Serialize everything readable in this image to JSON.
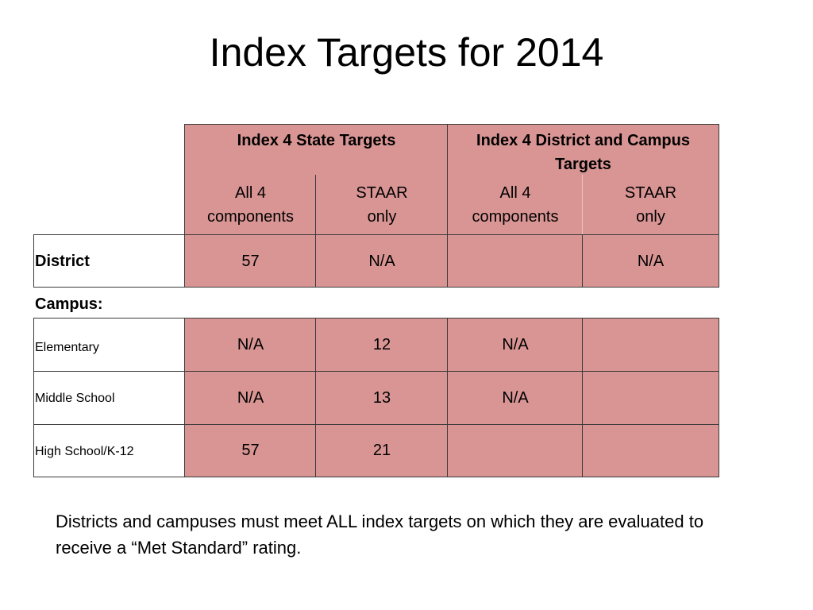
{
  "slide": {
    "title": "Index Targets for 2014",
    "footnote": "Districts and campuses  must meet ALL index targets on which they are evaluated to receive a “Met Standard” rating."
  },
  "table": {
    "group_headers": {
      "state": "Index 4 State Targets",
      "district_campus": "Index 4 District and Campus Targets"
    },
    "sub_headers": {
      "state_all": "All 4 components",
      "state_staar": "STAAR only",
      "dc_all": "All 4 components",
      "dc_staar": "STAAR only"
    },
    "district": {
      "label": "District",
      "state_all": "57",
      "state_staar": "N/A",
      "dc_all": "",
      "dc_staar": "N/A"
    },
    "campus_label": "Campus:",
    "campus_rows": [
      {
        "label": "Elementary",
        "state_all": "N/A",
        "state_staar": "12",
        "dc_all": "N/A",
        "dc_staar": ""
      },
      {
        "label": "Middle School",
        "state_all": "N/A",
        "state_staar": "13",
        "dc_all": "N/A",
        "dc_staar": ""
      },
      {
        "label": "High School/K-12",
        "state_all": "57",
        "state_staar": "21",
        "dc_all": "",
        "dc_staar": ""
      }
    ]
  }
}
